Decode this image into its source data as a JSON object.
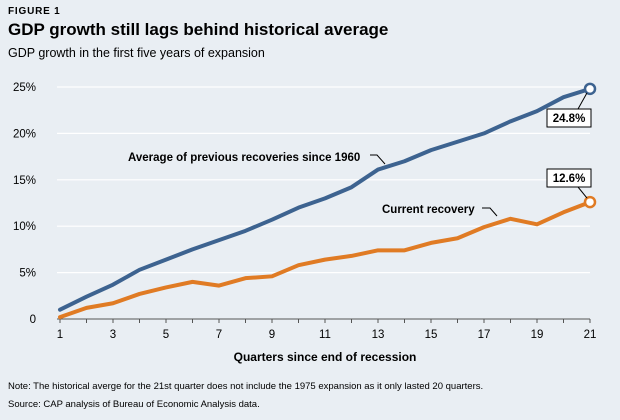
{
  "figure_label": "FIGURE 1",
  "title": "GDP growth still lags behind historical average",
  "subtitle": "GDP growth in the first five years of expansion",
  "note": "Note: The historical averge for the 21st quarter does not include the 1975 expansion as it only lasted 20 quarters.",
  "source": "Source: CAP analysis of Bureau of Economic Analysis data.",
  "chart_data": {
    "type": "line",
    "xlabel": "Quarters since end of recession",
    "ylabel": "",
    "x": [
      1,
      2,
      3,
      4,
      5,
      6,
      7,
      8,
      9,
      10,
      11,
      12,
      13,
      14,
      15,
      16,
      17,
      18,
      19,
      20,
      21
    ],
    "xticks": [
      1,
      3,
      5,
      7,
      9,
      11,
      13,
      15,
      17,
      19,
      21
    ],
    "xlim": [
      1,
      21
    ],
    "ylim": [
      0,
      25
    ],
    "yticks": [
      0,
      5,
      10,
      15,
      20,
      25
    ],
    "ytick_labels": [
      "0",
      "5%",
      "10%",
      "15%",
      "20%",
      "25%"
    ],
    "grid": "horizontal",
    "series": [
      {
        "name": "Average of previous recoveries since 1960",
        "color": "#3d6390",
        "values": [
          1.0,
          2.4,
          3.7,
          5.3,
          6.4,
          7.5,
          8.5,
          9.5,
          10.7,
          12.0,
          13.0,
          14.2,
          16.1,
          17.0,
          18.2,
          19.1,
          20.0,
          21.3,
          22.4,
          23.9,
          24.8
        ],
        "end_label": "24.8%"
      },
      {
        "name": "Current recovery",
        "color": "#e07b24",
        "values": [
          0.2,
          1.2,
          1.7,
          2.7,
          3.4,
          4.0,
          3.6,
          4.4,
          4.6,
          5.8,
          6.4,
          6.8,
          7.4,
          7.4,
          8.2,
          8.7,
          9.9,
          10.8,
          10.2,
          11.5,
          12.6
        ],
        "end_label": "12.6%"
      }
    ]
  }
}
